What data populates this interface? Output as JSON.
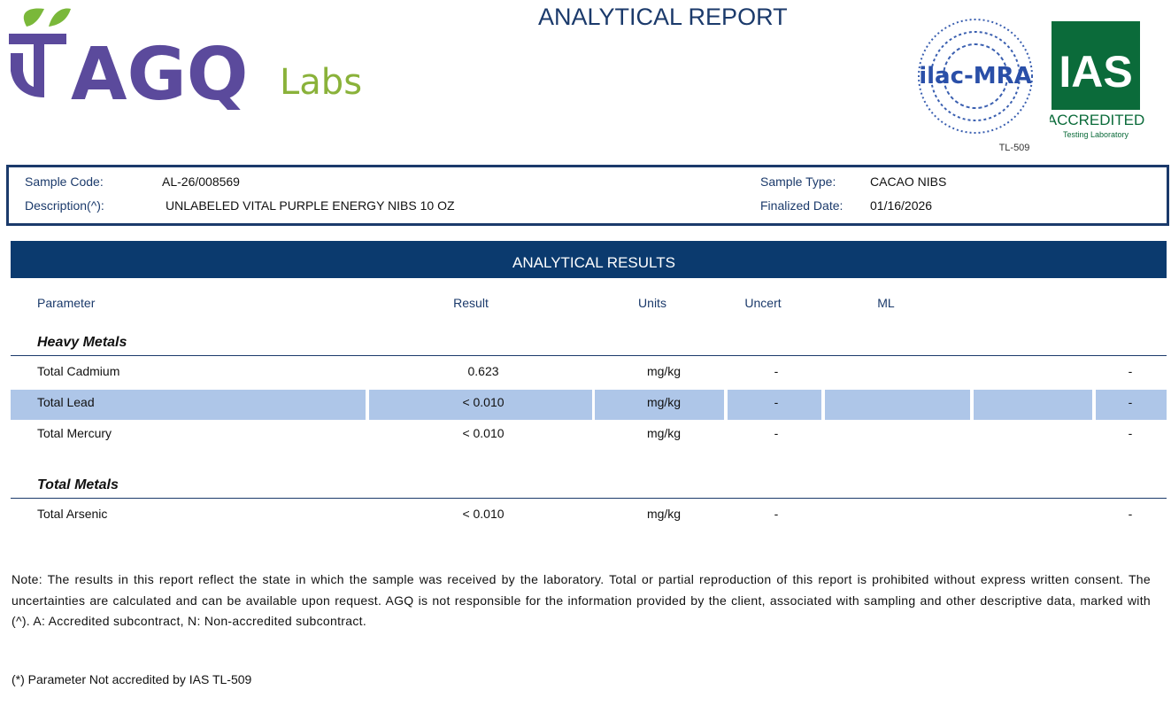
{
  "header": {
    "title": "ANALYTICAL REPORT",
    "logo": {
      "mark": "AGQ",
      "suffix": "Labs"
    },
    "ilac": {
      "name": "ilac-MRA",
      "code": "TL-509"
    },
    "ias": {
      "name": "IAS",
      "status": "ACCREDITED",
      "subtitle": "Testing Laboratory"
    }
  },
  "sample": {
    "fields": [
      {
        "label": "Sample Code:",
        "value": "AL-26/008569"
      },
      {
        "label": "Sample Type:",
        "value": "CACAO NIBS"
      },
      {
        "label": "Description(^):",
        "value": "UNLABELED VITAL PURPLE ENERGY NIBS 10 OZ"
      },
      {
        "label": "Finalized Date:",
        "value": "01/16/2026"
      }
    ]
  },
  "results": {
    "heading": "ANALYTICAL RESULTS",
    "columns": [
      "Parameter",
      "Result",
      "Units",
      "Uncert",
      "ML"
    ],
    "groups": [
      {
        "name": "Heavy Metals",
        "rows": [
          {
            "parameter": "Total Cadmium",
            "result": "0.623",
            "units": "mg/kg",
            "uncert": "-",
            "extra": "-"
          },
          {
            "parameter": "Total Lead",
            "result": "< 0.010",
            "units": "mg/kg",
            "uncert": "-",
            "extra": "-"
          },
          {
            "parameter": "Total Mercury",
            "result": "< 0.010",
            "units": "mg/kg",
            "uncert": "-",
            "extra": "-"
          }
        ]
      },
      {
        "name": "Total Metals",
        "rows": [
          {
            "parameter": "Total Arsenic",
            "result": "< 0.010",
            "units": "mg/kg",
            "uncert": "-",
            "extra": "-"
          }
        ]
      }
    ]
  },
  "note": "Note: The results in this report reflect the state in which the sample was received by the laboratory. Total or partial reproduction of this report is prohibited without express written consent. The uncertainties are calculated and can be available upon request. AGQ is not responsible for the information provided by the client, associated with sampling and other descriptive data, marked with (^). A: Accredited subcontract, N: Non-accredited subcontract.",
  "footnote": "(*) Parameter Not accredited by IAS TL-509"
}
